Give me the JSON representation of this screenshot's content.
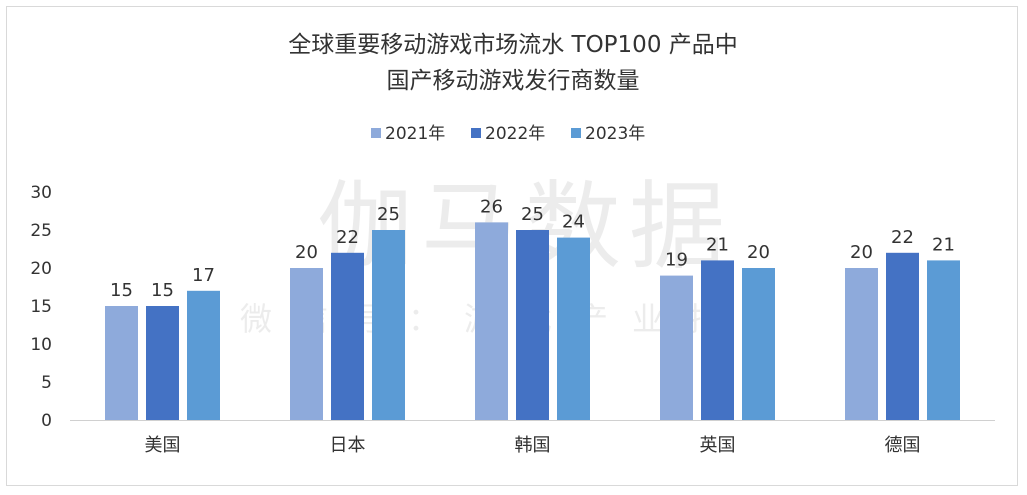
{
  "chart_data": {
    "type": "bar",
    "title": "全球重要移动游戏市场流水 TOP100 产品中",
    "subtitle": "国产移动游戏发行商数量",
    "categories": [
      "美国",
      "日本",
      "韩国",
      "英国",
      "德国"
    ],
    "series": [
      {
        "name": "2021年",
        "color": "#8eaadb",
        "values": [
          15,
          20,
          26,
          19,
          20
        ]
      },
      {
        "name": "2022年",
        "color": "#4472c4",
        "values": [
          15,
          22,
          25,
          21,
          22
        ]
      },
      {
        "name": "2023年",
        "color": "#5b9bd5",
        "values": [
          17,
          25,
          24,
          20,
          21
        ]
      }
    ],
    "ylim": [
      0,
      30
    ],
    "yticks": [
      0,
      5,
      10,
      15,
      20,
      25,
      30
    ],
    "grid": false,
    "legend": "top-center",
    "data_labels": true
  },
  "watermark": {
    "main": "伽马数据",
    "sub": "微信号：游戏产业报告"
  }
}
